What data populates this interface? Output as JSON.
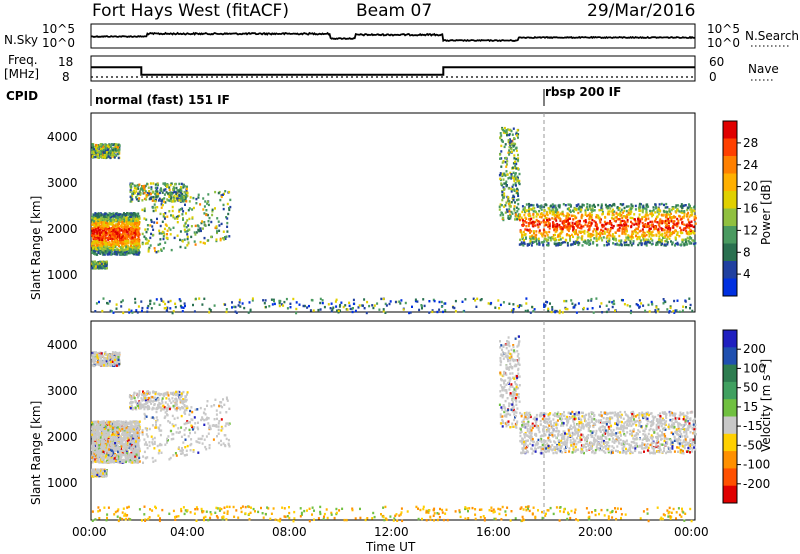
{
  "header": {
    "station": "Fort Hays West (fitACF)",
    "beam": "Beam 07",
    "date": "29/Mar/2016"
  },
  "noise_panel": {
    "left_label": "N.Sky",
    "right_label": "N.Search",
    "left_ticks": [
      "10^5",
      "10^0"
    ],
    "right_ticks": [
      "10^5",
      "10^0"
    ]
  },
  "freq_panel": {
    "left_label_line1": "Freq.",
    "left_label_line2": "[MHz]",
    "right_label": "Nave",
    "left_ticks": [
      "18",
      "8"
    ],
    "right_ticks": [
      "60",
      "0"
    ]
  },
  "cpid_panel": {
    "label": "CPID",
    "modes": [
      {
        "name": "normal (fast) 151 IF",
        "start_hour": 0
      },
      {
        "name": "rbsp 200 IF",
        "start_hour": 18
      }
    ]
  },
  "x_axis": {
    "label": "Time UT",
    "tick_labels": [
      "00:00",
      "04:00",
      "08:00",
      "12:00",
      "16:00",
      "20:00",
      "00:00"
    ]
  },
  "power_panel": {
    "ylabel": "Slant Range [km]",
    "yticks": [
      "4000",
      "3000",
      "2000",
      "1000"
    ],
    "colorbar_label": "Power [dB]",
    "colorbar_ticks": [
      "28",
      "24",
      "20",
      "16",
      "12",
      "8",
      "4"
    ],
    "colorbar_colors": [
      "#e00000",
      "#ff4000",
      "#ff8000",
      "#ffb000",
      "#e0d000",
      "#90c040",
      "#4a9a60",
      "#2a7050",
      "#2040a0",
      "#0030e0"
    ]
  },
  "velocity_panel": {
    "ylabel": "Slant Range [km]",
    "yticks": [
      "4000",
      "3000",
      "2000",
      "1000"
    ],
    "colorbar_label": "Velocity [m s⁻¹]",
    "colorbar_ticks": [
      "200",
      "100",
      "50",
      "15",
      "-15",
      "-50",
      "-100",
      "-200"
    ],
    "colorbar_colors": [
      "#2020c0",
      "#2050b0",
      "#2e7d50",
      "#40a060",
      "#70c040",
      "#c8c8c8",
      "#ffd000",
      "#ff9000",
      "#ff5000",
      "#e00000"
    ]
  },
  "chart_data": {
    "type": "heatmap",
    "title": "Fort Hays West (fitACF)",
    "xlabel": "Time UT",
    "ylabel": "Slant Range [km]",
    "xlim_hours": [
      0,
      24
    ],
    "ylim_km": [
      180,
      4500
    ],
    "frequency_mhz": [
      {
        "start_hour": 0,
        "end_hour": 2,
        "value": 13.5
      },
      {
        "start_hour": 2,
        "end_hour": 14,
        "value": 10.5
      },
      {
        "start_hour": 14,
        "end_hour": 24,
        "value": 13.5
      }
    ],
    "scatter_regions": [
      {
        "start_hour": 0.0,
        "end_hour": 1.9,
        "range_low_km": 1450,
        "range_high_km": 2350,
        "note": "strong echo band"
      },
      {
        "start_hour": 2.0,
        "end_hour": 5.5,
        "range_low_km": 1400,
        "range_high_km": 2500,
        "note": "rising band"
      },
      {
        "start_hour": 0.0,
        "end_hour": 0.6,
        "range_low_km": 1150,
        "range_high_km": 1300
      },
      {
        "start_hour": 0.0,
        "end_hour": 1.1,
        "range_low_km": 3550,
        "range_high_km": 3850
      },
      {
        "start_hour": 1.5,
        "end_hour": 3.8,
        "range_low_km": 2600,
        "range_high_km": 3000
      },
      {
        "start_hour": 16.2,
        "end_hour": 17.0,
        "range_low_km": 2200,
        "range_high_km": 4200,
        "note": "near-vertical streak"
      },
      {
        "start_hour": 17.0,
        "end_hour": 24.0,
        "range_low_km": 1650,
        "range_high_km": 2550,
        "note": "strong echo band"
      },
      {
        "start_hour": 0.0,
        "end_hour": 24.0,
        "range_low_km": 180,
        "range_high_km": 500,
        "note": "near-range ground echoes"
      }
    ]
  }
}
